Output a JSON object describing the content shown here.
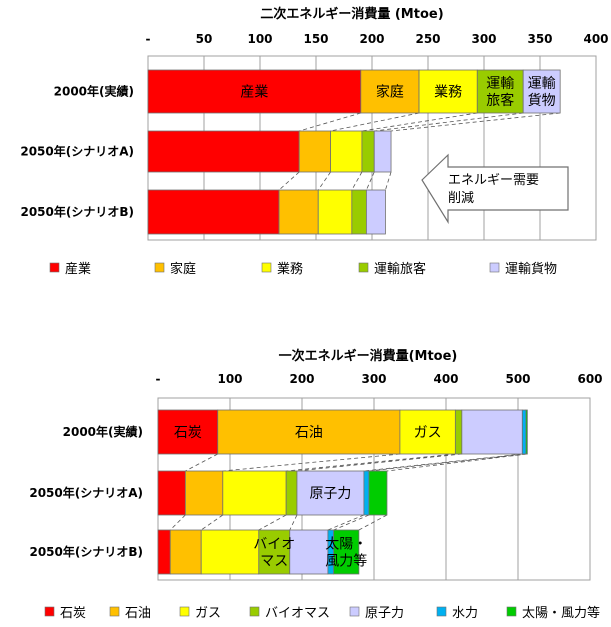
{
  "chart_data": [
    {
      "type": "bar",
      "orientation": "horizontal",
      "stacked": true,
      "title": "二次エネルギー消費量 (Mtoe)",
      "xlim": [
        0,
        400
      ],
      "xticks": [
        "-",
        "50",
        "100",
        "150",
        "200",
        "250",
        "300",
        "350",
        "400"
      ],
      "grid": true,
      "legend_position": "bottom",
      "categories": [
        "2000年(実績)",
        "2050年(シナリオA)",
        "2050年(シナリオB)"
      ],
      "series": [
        {
          "name": "産業",
          "color": "#ff0000",
          "values": [
            190,
            135,
            117
          ]
        },
        {
          "name": "家庭",
          "color": "#ffc000",
          "values": [
            52,
            28,
            35
          ]
        },
        {
          "name": "業務",
          "color": "#ffff00",
          "values": [
            52,
            28,
            30
          ]
        },
        {
          "name": "運輸旅客",
          "color": "#99cc00",
          "values": [
            41,
            11,
            13
          ]
        },
        {
          "name": "運輸貨物",
          "color": "#ccccff",
          "values": [
            33,
            15,
            17
          ]
        }
      ],
      "segment_labels": [
        {
          "row": 0,
          "series": 0,
          "text": "産業"
        },
        {
          "row": 0,
          "series": 1,
          "text": "家庭"
        },
        {
          "row": 0,
          "series": 2,
          "text": "業務"
        },
        {
          "row": 0,
          "series": 3,
          "text": "運輸\n旅客"
        },
        {
          "row": 0,
          "series": 4,
          "text": "運輸\n貨物"
        }
      ],
      "annotation": "エネルギー需要\n削減"
    },
    {
      "type": "bar",
      "orientation": "horizontal",
      "stacked": true,
      "title": "一次エネルギー消費量(Mtoe)",
      "xlim": [
        0,
        600
      ],
      "xticks": [
        "-",
        "100",
        "200",
        "300",
        "400",
        "500",
        "600"
      ],
      "grid": true,
      "legend_position": "bottom",
      "categories": [
        "2000年(実績)",
        "2050年(シナリオA)",
        "2050年(シナリオB)"
      ],
      "series": [
        {
          "name": "石炭",
          "color": "#ff0000",
          "values": [
            83,
            38,
            17
          ]
        },
        {
          "name": "石油",
          "color": "#ffc000",
          "values": [
            253,
            52,
            43
          ]
        },
        {
          "name": "ガス",
          "color": "#ffff00",
          "values": [
            77,
            88,
            80
          ]
        },
        {
          "name": "バイオマス",
          "color": "#99cc00",
          "values": [
            9,
            15,
            43
          ]
        },
        {
          "name": "原子力",
          "color": "#ccccff",
          "values": [
            84,
            93,
            53
          ]
        },
        {
          "name": "水力",
          "color": "#00b0f0",
          "values": [
            5,
            7,
            8
          ]
        },
        {
          "name": "太陽・風力等",
          "color": "#00cc00",
          "values": [
            2,
            25,
            35
          ]
        }
      ],
      "segment_labels": [
        {
          "row": 0,
          "series": 0,
          "text": "石炭"
        },
        {
          "row": 0,
          "series": 1,
          "text": "石油"
        },
        {
          "row": 0,
          "series": 2,
          "text": "ガス"
        },
        {
          "row": 1,
          "series": 4,
          "text": "原子力"
        },
        {
          "row": 2,
          "series": 3,
          "text": "バイオ\nマス"
        },
        {
          "row": 2,
          "series": 6,
          "text": "太陽・\n風力等"
        }
      ]
    }
  ]
}
